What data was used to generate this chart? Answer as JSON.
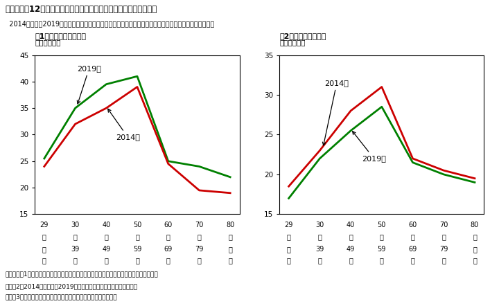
{
  "title": "第３－３－12図　世帯主の年齢階級別にみた可処分所得と消費支出",
  "subtitle": "  2014年から〙2019年にかけて、高齢者は所得の伸びが大きく、より若い年齢層と異なり消費水準も維持",
  "footnote1": "（備考）　1．総務省「全国家計構造調査」、「全国消費実態調査」により作成。総世帯。",
  "footnote2": "　　　2．2014年の値は、2019年調査の集計方法による逶及集計値。",
  "footnote3": "　　　3．（１）は、世帯主が勤労者の世帯と無職の世帯の合計。",
  "panel1_title": "（1）可処分所得カーブ",
  "panel2_title": "（2）消費支出カーブ",
  "unit": "（万円／月）",
  "x_categories": [
    1,
    2,
    3,
    4,
    5,
    6,
    7
  ],
  "x_labels_line1": [
    "29",
    "30",
    "40",
    "50",
    "60",
    "70",
    "80"
  ],
  "x_labels_line2": [
    "歳",
    "～",
    "～",
    "～",
    "～",
    "～",
    "歳"
  ],
  "x_labels_line3": [
    "以",
    "39",
    "49",
    "59",
    "69",
    "79",
    "以"
  ],
  "x_labels_line4": [
    "下",
    "歳",
    "歳",
    "歳",
    "歳",
    "歳",
    "上"
  ],
  "panel1_2019": [
    25.5,
    35.0,
    39.5,
    41.0,
    25.0,
    24.0,
    22.0
  ],
  "panel1_2014": [
    24.0,
    32.0,
    35.0,
    39.0,
    24.5,
    19.5,
    19.0
  ],
  "panel2_2014": [
    18.5,
    23.0,
    28.0,
    31.0,
    22.0,
    20.5,
    19.5
  ],
  "panel2_2019": [
    17.0,
    22.0,
    25.5,
    28.5,
    21.5,
    20.0,
    19.0
  ],
  "panel1_ylim": [
    15,
    45
  ],
  "panel2_ylim": [
    15,
    35
  ],
  "panel1_yticks": [
    15,
    20,
    25,
    30,
    35,
    40,
    45
  ],
  "panel2_yticks": [
    15,
    20,
    25,
    30,
    35
  ],
  "color_2019": "#008000",
  "color_2014": "#cc0000",
  "linewidth": 2.0,
  "bg_color": "#ffffff",
  "label_2019": "2019年",
  "label_2014": "2014年"
}
